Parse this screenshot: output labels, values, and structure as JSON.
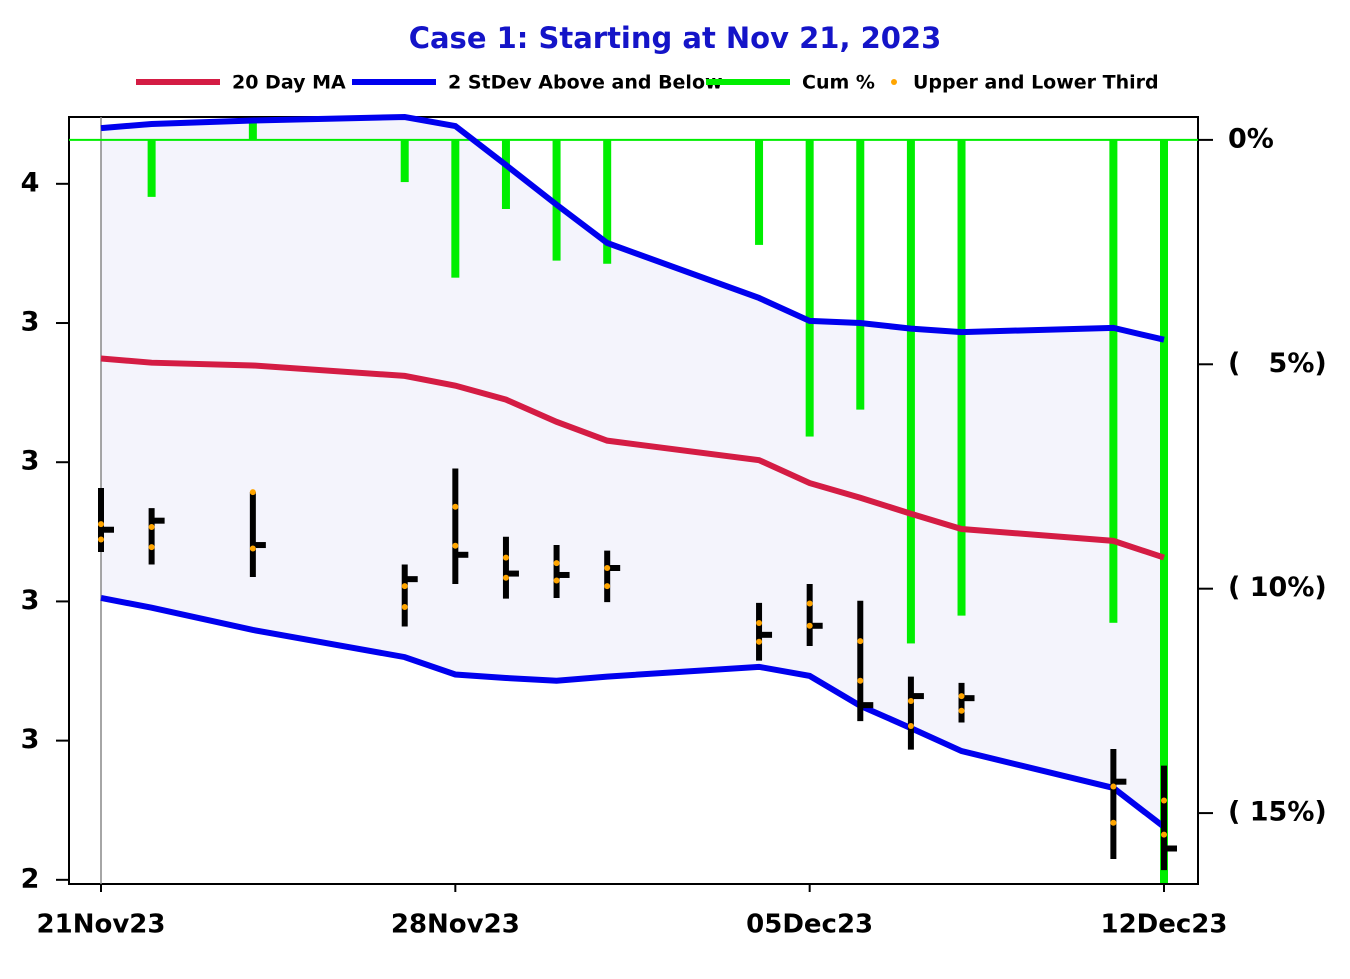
{
  "chart_data": {
    "type": "ohlc-band",
    "title": "Case 1:  Starting at Nov 21, 2023",
    "x": [
      "2023-11-21",
      "2023-11-22",
      "2023-11-24",
      "2023-11-27",
      "2023-11-28",
      "2023-11-29",
      "2023-11-30",
      "2023-12-01",
      "2023-12-04",
      "2023-12-05",
      "2023-12-06",
      "2023-12-07",
      "2023-12-08",
      "2023-12-11",
      "2023-12-12"
    ],
    "xticks": [
      {
        "value": "2023-11-21",
        "label": "21Nov23"
      },
      {
        "value": "2023-11-28",
        "label": "28Nov23"
      },
      {
        "value": "2023-12-05",
        "label": "05Dec23"
      },
      {
        "value": "2023-12-12",
        "label": "12Dec23"
      }
    ],
    "ylim": [
      2.494,
      3.596
    ],
    "yticks": [
      {
        "value": 2.5,
        "label": "2"
      },
      {
        "value": 2.7,
        "label": "3"
      },
      {
        "value": 2.9,
        "label": "3"
      },
      {
        "value": 3.1,
        "label": "3"
      },
      {
        "value": 3.3,
        "label": "3"
      },
      {
        "value": 3.5,
        "label": "4"
      }
    ],
    "y2lim": [
      -16.58,
      0.51
    ],
    "y2ticks": [
      0,
      {
        "value": -5,
        "label": "(   5%)"
      },
      {
        "value": -10,
        "label": "( 10%)"
      },
      {
        "value": -15,
        "label": "( 15%)"
      }
    ],
    "y2tick_labels_first": "0%",
    "series": [
      {
        "name": "20 Day MA",
        "color": "#d41c44",
        "values": [
          3.249,
          3.243,
          3.239,
          3.224,
          3.21,
          3.19,
          3.158,
          3.131,
          3.103,
          3.07,
          3.049,
          3.026,
          3.004,
          2.987,
          2.963
        ]
      },
      {
        "name": "2 StDev Above and Below",
        "color": "#0000ee",
        "fill": "#f4f4fc",
        "upper": [
          3.58,
          3.586,
          3.591,
          3.596,
          3.583,
          3.527,
          3.47,
          3.415,
          3.336,
          3.303,
          3.3,
          3.292,
          3.287,
          3.293,
          3.276
        ],
        "lower": [
          2.905,
          2.891,
          2.859,
          2.82,
          2.795,
          2.79,
          2.786,
          2.792,
          2.806,
          2.793,
          2.75,
          2.718,
          2.685,
          2.632,
          2.576
        ]
      },
      {
        "name": "Cum %",
        "color": "#00ee00",
        "axis": "y2",
        "values": [
          0,
          -1.27,
          0.51,
          -0.94,
          -3.07,
          -1.54,
          -2.69,
          -2.76,
          -2.34,
          -6.61,
          -6.01,
          -11.22,
          -10.6,
          -10.76,
          -16.6
        ]
      },
      {
        "name": "Upper and Lower Third",
        "color": "#ffa500",
        "upper": [
          3.011,
          3.007,
          3.057,
          2.922,
          3.036,
          2.963,
          2.955,
          2.948,
          2.869,
          2.897,
          2.843,
          2.757,
          2.764,
          2.634,
          2.614
        ],
        "lower": [
          2.989,
          2.978,
          2.976,
          2.892,
          2.98,
          2.934,
          2.93,
          2.922,
          2.842,
          2.865,
          2.786,
          2.721,
          2.743,
          2.582,
          2.565
        ]
      }
    ],
    "ohlc": {
      "high": [
        3.063,
        3.034,
        3.057,
        2.953,
        3.091,
        2.993,
        2.981,
        2.973,
        2.898,
        2.925,
        2.901,
        2.792,
        2.783,
        2.688,
        2.664
      ],
      "low": [
        2.971,
        2.953,
        2.935,
        2.864,
        2.925,
        2.904,
        2.905,
        2.899,
        2.815,
        2.836,
        2.728,
        2.687,
        2.726,
        2.53,
        2.514
      ],
      "close": [
        3.003,
        3.016,
        2.981,
        2.932,
        2.967,
        2.94,
        2.938,
        2.948,
        2.852,
        2.865,
        2.751,
        2.764,
        2.761,
        2.641,
        2.545
      ]
    },
    "zero_line": 0
  }
}
